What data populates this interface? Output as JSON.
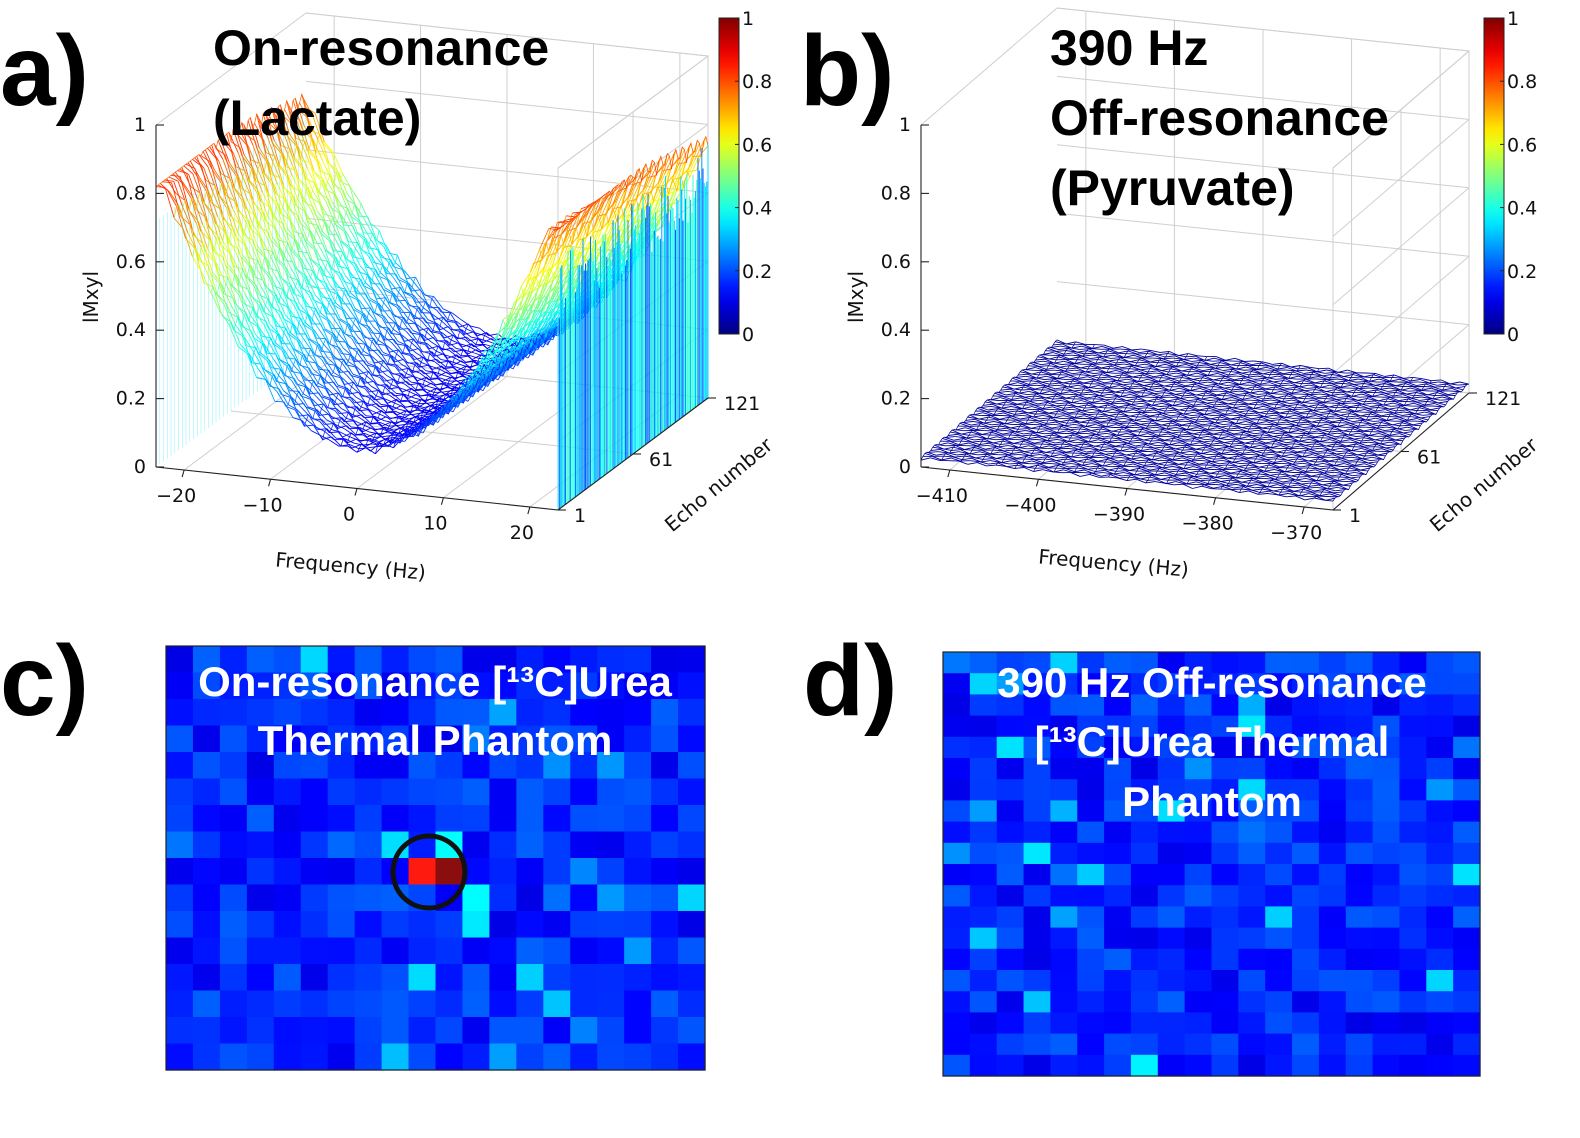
{
  "panel_labels": [
    "a)",
    "b)",
    "c)",
    "d)"
  ],
  "colors": {
    "colormap": "jet",
    "heatmap_base": "#1f4de6",
    "marker_circle": "#111111"
  },
  "chart_data": [
    {
      "id": "a",
      "type": "surface3d",
      "title_lines": [
        "On-resonance",
        "(Lactate)"
      ],
      "xlabel": "Frequency (Hz)",
      "ylabel": "Echo number",
      "zlabel": "lMxyl",
      "x_ticks": [
        "−20",
        "−10",
        "0",
        "10",
        "20"
      ],
      "y_ticks": [
        "1",
        "61",
        "121"
      ],
      "z_ticks": [
        "0",
        "0.2",
        "0.4",
        "0.6",
        "0.8",
        "1"
      ],
      "x_range": [
        -25,
        25
      ],
      "y_range": [
        1,
        121
      ],
      "zlim": [
        0,
        1
      ],
      "colorbar_ticks": [
        "0",
        "0.2",
        "0.4",
        "0.6",
        "0.8",
        "1"
      ],
      "description_values": {
        "min_at_zero_hz": 0.1,
        "edge_first_echo": 0.75,
        "edge_last_echo": 0.72
      }
    },
    {
      "id": "b",
      "type": "surface3d",
      "title_lines": [
        "390 Hz",
        "Off-resonance",
        "(Pyruvate)"
      ],
      "xlabel": "Frequency (Hz)",
      "ylabel": "Echo number",
      "zlabel": "lMxyl",
      "x_ticks": [
        "−410",
        "−400",
        "−390",
        "−380",
        "−370"
      ],
      "y_ticks": [
        "1",
        "61",
        "121"
      ],
      "z_ticks": [
        "0",
        "0.2",
        "0.4",
        "0.6",
        "0.8",
        "1"
      ],
      "x_range": [
        -415,
        -365
      ],
      "y_range": [
        1,
        121
      ],
      "zlim": [
        0,
        1
      ],
      "colorbar_ticks": [
        "0",
        "0.2",
        "0.4",
        "0.6",
        "0.8",
        "1"
      ],
      "description_values": {
        "plateau": 0.02
      }
    },
    {
      "id": "c",
      "type": "heatmap",
      "title_lines": [
        "On-resonance [¹³C]Urea",
        "Thermal Phantom"
      ],
      "rows": 16,
      "cols": 20,
      "hot_cells": [
        {
          "row": 8,
          "col": 9,
          "value": 0.85
        },
        {
          "row": 8,
          "col": 10,
          "value": 1.0
        }
      ],
      "annotation": "circled signal"
    },
    {
      "id": "d",
      "type": "heatmap",
      "title_lines": [
        "390 Hz Off-resonance",
        "[¹³C]Urea Thermal",
        "Phantom"
      ],
      "rows": 20,
      "cols": 20,
      "hot_cells": []
    }
  ]
}
